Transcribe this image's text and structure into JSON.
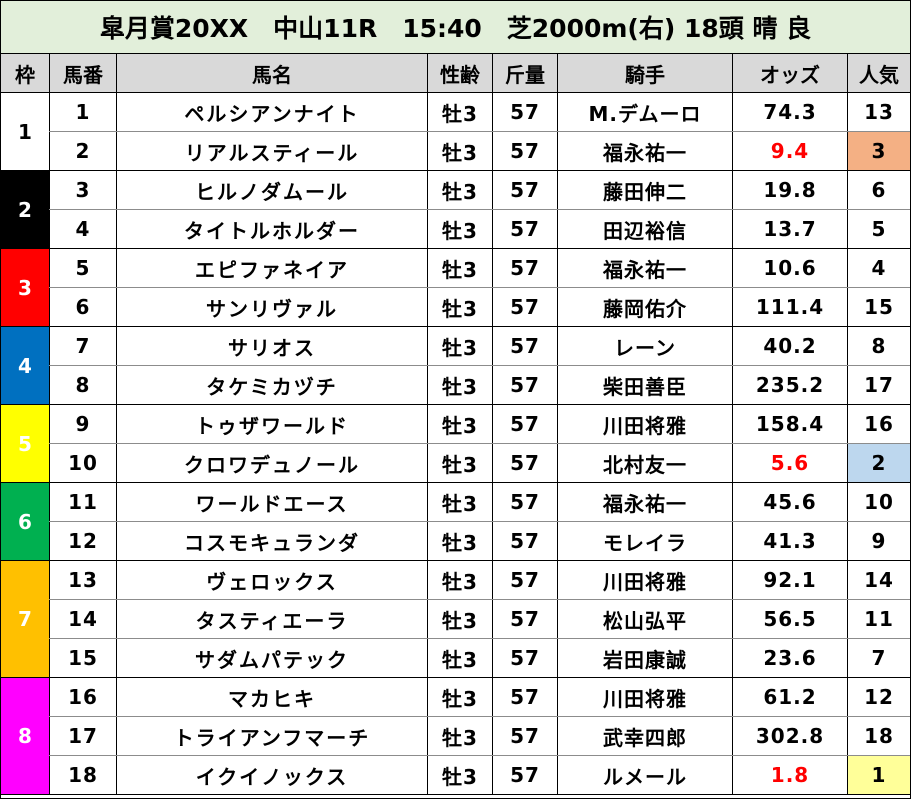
{
  "title": "皐月賞20XX　中山11R　15:40　芝2000m(右) 18頭 晴 良",
  "headers": [
    "枠",
    "馬番",
    "馬名",
    "性齢",
    "斤量",
    "騎手",
    "オッズ",
    "人気"
  ],
  "frame_colors": {
    "1": {
      "bg": "#ffffff",
      "fg": "#000000"
    },
    "2": {
      "bg": "#000000",
      "fg": "#ffffff"
    },
    "3": {
      "bg": "#ff0000",
      "fg": "#ffffff"
    },
    "4": {
      "bg": "#0070c0",
      "fg": "#ffffff"
    },
    "5": {
      "bg": "#ffff00",
      "fg": "#ffffff"
    },
    "6": {
      "bg": "#00b050",
      "fg": "#ffffff"
    },
    "7": {
      "bg": "#ffc000",
      "fg": "#ffffff"
    },
    "8": {
      "bg": "#ff00ff",
      "fg": "#ffffff"
    }
  },
  "popularity_highlight": {
    "1": "#ffff99",
    "2": "#bdd7ee",
    "3": "#f4b084"
  },
  "frames": [
    {
      "frame": "1",
      "horses": [
        {
          "num": "1",
          "name": "ペルシアンナイト",
          "sexage": "牡3",
          "weight": "57",
          "jockey": "M.デムーロ",
          "odds": "74.3",
          "pop": "13"
        },
        {
          "num": "2",
          "name": "リアルスティール",
          "sexage": "牡3",
          "weight": "57",
          "jockey": "福永祐一",
          "odds": "9.4",
          "pop": "3"
        }
      ]
    },
    {
      "frame": "2",
      "horses": [
        {
          "num": "3",
          "name": "ヒルノダムール",
          "sexage": "牡3",
          "weight": "57",
          "jockey": "藤田伸二",
          "odds": "19.8",
          "pop": "6"
        },
        {
          "num": "4",
          "name": "タイトルホルダー",
          "sexage": "牡3",
          "weight": "57",
          "jockey": "田辺裕信",
          "odds": "13.7",
          "pop": "5"
        }
      ]
    },
    {
      "frame": "3",
      "horses": [
        {
          "num": "5",
          "name": "エピファネイア",
          "sexage": "牡3",
          "weight": "57",
          "jockey": "福永祐一",
          "odds": "10.6",
          "pop": "4"
        },
        {
          "num": "6",
          "name": "サンリヴァル",
          "sexage": "牡3",
          "weight": "57",
          "jockey": "藤岡佑介",
          "odds": "111.4",
          "pop": "15"
        }
      ]
    },
    {
      "frame": "4",
      "horses": [
        {
          "num": "7",
          "name": "サリオス",
          "sexage": "牡3",
          "weight": "57",
          "jockey": "レーン",
          "odds": "40.2",
          "pop": "8"
        },
        {
          "num": "8",
          "name": "タケミカヅチ",
          "sexage": "牡3",
          "weight": "57",
          "jockey": "柴田善臣",
          "odds": "235.2",
          "pop": "17"
        }
      ]
    },
    {
      "frame": "5",
      "horses": [
        {
          "num": "9",
          "name": "トゥザワールド",
          "sexage": "牡3",
          "weight": "57",
          "jockey": "川田将雅",
          "odds": "158.4",
          "pop": "16"
        },
        {
          "num": "10",
          "name": "クロワデュノール",
          "sexage": "牡3",
          "weight": "57",
          "jockey": "北村友一",
          "odds": "5.6",
          "pop": "2"
        }
      ]
    },
    {
      "frame": "6",
      "horses": [
        {
          "num": "11",
          "name": "ワールドエース",
          "sexage": "牡3",
          "weight": "57",
          "jockey": "福永祐一",
          "odds": "45.6",
          "pop": "10"
        },
        {
          "num": "12",
          "name": "コスモキュランダ",
          "sexage": "牡3",
          "weight": "57",
          "jockey": "モレイラ",
          "odds": "41.3",
          "pop": "9"
        }
      ]
    },
    {
      "frame": "7",
      "horses": [
        {
          "num": "13",
          "name": "ヴェロックス",
          "sexage": "牡3",
          "weight": "57",
          "jockey": "川田将雅",
          "odds": "92.1",
          "pop": "14"
        },
        {
          "num": "14",
          "name": "タスティエーラ",
          "sexage": "牡3",
          "weight": "57",
          "jockey": "松山弘平",
          "odds": "56.5",
          "pop": "11"
        },
        {
          "num": "15",
          "name": "サダムパテック",
          "sexage": "牡3",
          "weight": "57",
          "jockey": "岩田康誠",
          "odds": "23.6",
          "pop": "7"
        }
      ]
    },
    {
      "frame": "8",
      "horses": [
        {
          "num": "16",
          "name": "マカヒキ",
          "sexage": "牡3",
          "weight": "57",
          "jockey": "川田将雅",
          "odds": "61.2",
          "pop": "12"
        },
        {
          "num": "17",
          "name": "トライアンフマーチ",
          "sexage": "牡3",
          "weight": "57",
          "jockey": "武幸四郎",
          "odds": "302.8",
          "pop": "18"
        },
        {
          "num": "18",
          "name": "イクイノックス",
          "sexage": "牡3",
          "weight": "57",
          "jockey": "ルメール",
          "odds": "1.8",
          "pop": "1"
        }
      ]
    }
  ]
}
